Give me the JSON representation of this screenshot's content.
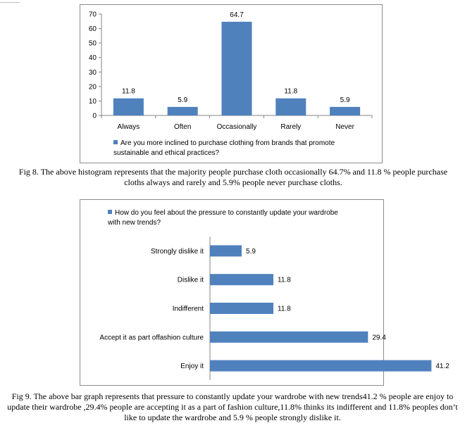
{
  "chart_data": [
    {
      "type": "bar",
      "orientation": "vertical",
      "categories": [
        "Always",
        "Often",
        "Occasionally",
        "Rarely",
        "Never"
      ],
      "series": [
        {
          "name": "Are you more inclined to purchase clothing from brands that promote sustainable and ethical practices?",
          "values": [
            11.8,
            5.9,
            64.7,
            11.8,
            5.9
          ]
        }
      ],
      "value_labels": [
        "11.8",
        "5.9",
        "64.7",
        "11.8",
        "5.9"
      ],
      "ylim": [
        0,
        70
      ],
      "yticks": [
        "0",
        "10",
        "20",
        "30",
        "40",
        "50",
        "60",
        "70"
      ],
      "grid": false,
      "legend": "bottom",
      "color": "#4f81bd"
    },
    {
      "type": "bar",
      "orientation": "horizontal",
      "categories": [
        "Strongly dislike it",
        "Dislike it",
        "Indifferent",
        "Accept it as part offashion culture",
        "Enjoy it"
      ],
      "series": [
        {
          "name": "How do you feel about the pressure to constantly update your wardrobe with new trends?",
          "values": [
            5.9,
            11.8,
            11.8,
            29.4,
            41.2
          ]
        }
      ],
      "value_labels": [
        "5.9",
        "11.8",
        "11.8",
        "29.4",
        "41.2"
      ],
      "xlim": [
        0,
        45
      ],
      "grid": false,
      "legend": "top",
      "color": "#4f81bd"
    }
  ],
  "legends": {
    "fig8": "Are you more inclined to purchase clothing from brands that promote sustainable and ethical practices?",
    "fig9": "How do you feel about the pressure to constantly update your wardrobe with new trends?"
  },
  "captions": {
    "fig8": "Fig 8. The above histogram represents that the majority people purchase cloth occasionally 64.7% and 11.8 % people purchase cloths always and rarely and 5.9% people never purchase cloths.",
    "fig9": "Fig 9. The above bar graph represents that pressure to constantly update your wardrobe with new trends41.2 % people are enjoy to update their wardrobe ,29.4% people are accepting it as a part of fashion culture,11.8% thinks its indifferent and 11.8% peoples don’t like to update the wardrobe and 5.9 % people strongly dislike it."
  }
}
